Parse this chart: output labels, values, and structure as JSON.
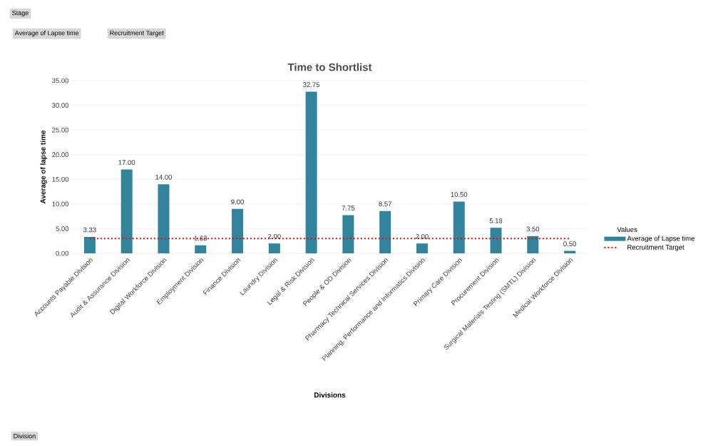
{
  "chart_data": {
    "type": "bar",
    "title": "Time to Shortlist",
    "xlabel": "Divisions",
    "ylabel": "Average of lapse time",
    "legend_title": "Values",
    "categories": [
      "Accounts Payable Division",
      "Audit & Assurance Division",
      "Digital Workforce Division",
      "Employment Division",
      "Finance Division",
      "Laundry Division",
      "Legal & Risk Division",
      "People & OD Division",
      "Pharmacy Technical Services Division",
      "Planning, Performance and Informatics Division",
      "Primary Care Division",
      "Procurement Division",
      "Surgical Materials Testing (SMTL) Division",
      "Medical Workforce Division"
    ],
    "series": [
      {
        "name": "Average of Lapse time",
        "type": "bar",
        "color": "#31849b",
        "values": [
          3.33,
          17.0,
          14.0,
          1.63,
          9.0,
          2.0,
          32.75,
          7.75,
          8.57,
          2.0,
          10.5,
          5.18,
          3.5,
          0.5
        ],
        "value_labels": [
          "3.33",
          "17.00",
          "14.00",
          "1.63",
          "9.00",
          "2.00",
          "32.75",
          "7.75",
          "8.57",
          "2.00",
          "10.50",
          "5.18",
          "3.50",
          "0.50"
        ]
      },
      {
        "name": "Recruitment Target",
        "type": "line",
        "color": "#ff0000",
        "line_style": "dotted",
        "values": [
          3,
          3,
          3,
          3,
          3,
          3,
          3,
          3,
          3,
          3,
          3,
          3,
          3,
          3
        ]
      }
    ],
    "ylim": [
      0,
      35
    ],
    "yticks": [
      {
        "value": 0,
        "label": "0.00"
      },
      {
        "value": 5,
        "label": "5.00"
      },
      {
        "value": 10,
        "label": "10.00"
      },
      {
        "value": 15,
        "label": "15.00"
      },
      {
        "value": 20,
        "label": "20.00"
      },
      {
        "value": 25,
        "label": "25.00"
      },
      {
        "value": 30,
        "label": "30.00"
      },
      {
        "value": 35,
        "label": "35.00"
      }
    ],
    "grid": "y",
    "legend": "right",
    "annotations": [
      "Stage",
      "Average of Lapse time",
      "Recruitment Target",
      "Division"
    ]
  }
}
